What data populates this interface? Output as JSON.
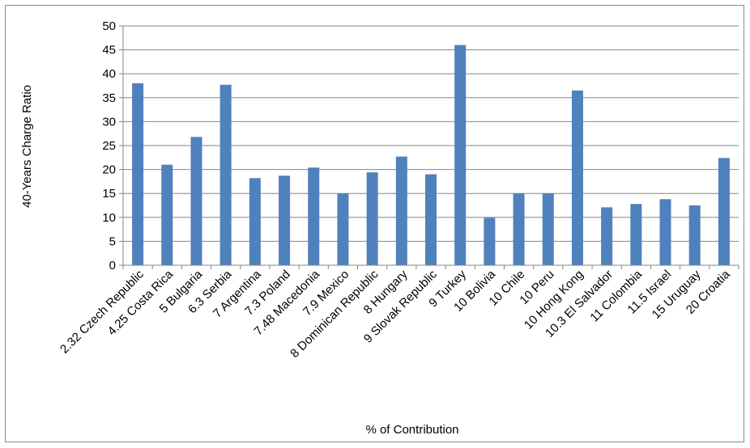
{
  "chart_data": {
    "type": "bar",
    "xlabel": "% of Contribution",
    "ylabel": "40-Years Charge Ratio",
    "ylim": [
      0,
      50
    ],
    "yticks": [
      0,
      5,
      10,
      15,
      20,
      25,
      30,
      35,
      40,
      45,
      50
    ],
    "grid": true,
    "legend": "none",
    "bar_color": "#4f81bd",
    "categories": [
      "2.32 Czech Republic",
      "4.25 Costa Rica",
      "5 Bulgaria",
      "6.3 Serbia",
      "7 Argentina",
      "7.3 Poland",
      "7.48 Macedonia",
      "7.9 Mexico",
      "8 Dominican Republic",
      "8 Hungary",
      "9 Slovak Republic",
      "9 Turkey",
      "10 Bolivia",
      "10 Chile",
      "10 Peru",
      "10 Hong Kong",
      "10.3 El Salvador",
      "11 Colombia",
      "11.5 Israel",
      "15 Uruguay",
      "20 Croatia"
    ],
    "values": [
      38,
      21,
      26.8,
      37.7,
      18.2,
      18.7,
      20.4,
      15,
      19.4,
      22.7,
      19,
      46,
      9.9,
      15,
      15,
      36.5,
      12.1,
      12.8,
      13.8,
      12.5,
      22.4
    ]
  }
}
